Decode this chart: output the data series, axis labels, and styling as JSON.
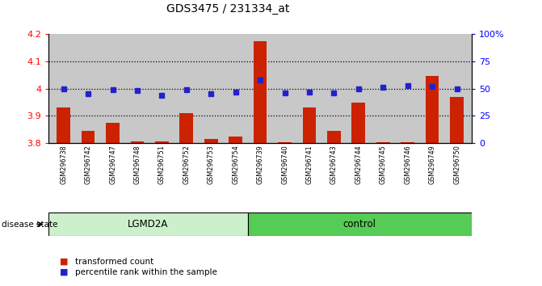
{
  "title": "GDS3475 / 231334_at",
  "samples": [
    "GSM296738",
    "GSM296742",
    "GSM296747",
    "GSM296748",
    "GSM296751",
    "GSM296752",
    "GSM296753",
    "GSM296754",
    "GSM296739",
    "GSM296740",
    "GSM296741",
    "GSM296743",
    "GSM296744",
    "GSM296745",
    "GSM296746",
    "GSM296749",
    "GSM296750"
  ],
  "bar_values": [
    3.93,
    3.845,
    3.875,
    3.805,
    3.806,
    3.91,
    3.815,
    3.825,
    4.175,
    3.802,
    3.93,
    3.845,
    3.95,
    3.802,
    3.802,
    4.046,
    3.97
  ],
  "dot_percentiles": [
    50,
    45,
    49,
    48,
    44,
    49,
    45,
    47,
    58,
    46,
    47,
    46,
    50,
    51,
    53,
    52,
    50
  ],
  "bar_color": "#cc2200",
  "dot_color": "#2222cc",
  "group1_label": "LGMD2A",
  "group2_label": "control",
  "group1_count": 8,
  "group2_count": 9,
  "group1_color": "#ccf0cc",
  "group2_color": "#55cc55",
  "disease_state_label": "disease state",
  "ylim_left": [
    3.8,
    4.2
  ],
  "ylim_right": [
    0,
    100
  ],
  "yticks_left": [
    3.8,
    3.9,
    4.0,
    4.1,
    4.2
  ],
  "ytick_left_labels": [
    "3.8",
    "3.9",
    "4",
    "4.1",
    "4.2"
  ],
  "yticks_right": [
    0,
    25,
    50,
    75,
    100
  ],
  "ytick_right_labels": [
    "0",
    "25",
    "50",
    "75",
    "100%"
  ],
  "legend_bar": "transformed count",
  "legend_dot": "percentile rank within the sample",
  "plot_bg": "#c8c8c8",
  "label_bg": "#c8c8c8",
  "bar_bottom": 3.8,
  "grid_lines_at": [
    3.9,
    4.0,
    4.1
  ]
}
